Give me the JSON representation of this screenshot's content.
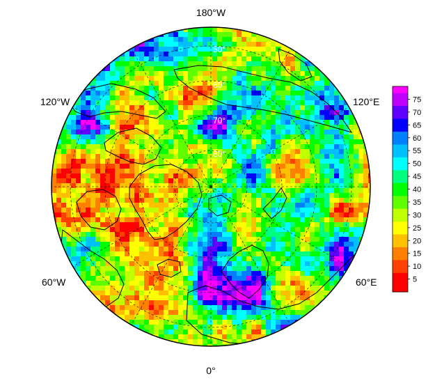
{
  "map": {
    "projection": "north polar stereographic",
    "longitude_labels": {
      "top": "180°W",
      "upper_left": "120°W",
      "upper_right": "120°E",
      "lower_left": "60°W",
      "lower_right": "60°E",
      "bottom": "0°"
    },
    "latitude_labels": [
      "50°",
      "60°",
      "70°",
      "80°"
    ],
    "colorbar": {
      "ticks": [
        "5",
        "10",
        "15",
        "20",
        "25",
        "30",
        "35",
        "40",
        "45",
        "50",
        "55",
        "60",
        "65",
        "70",
        "75"
      ],
      "colors": [
        "#ff0000",
        "#ff4000",
        "#ff8000",
        "#ffc000",
        "#ffff00",
        "#c0ff00",
        "#60ff00",
        "#00ff00",
        "#00ff80",
        "#00ffff",
        "#00c0ff",
        "#0080ff",
        "#0000ff",
        "#6000ff",
        "#c000ff",
        "#ff00ff"
      ]
    }
  }
}
